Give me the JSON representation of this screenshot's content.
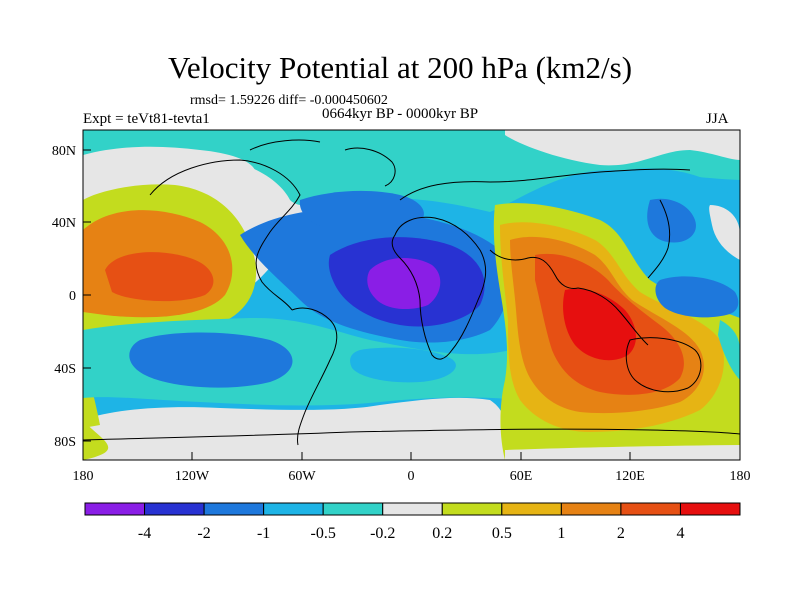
{
  "header": {
    "title": "Velocity Potential at 200 hPa (km2/s)",
    "stats": "rmsd= 1.59226 diff= -0.000450602",
    "period": "0664kyr BP - 0000kyr BP",
    "experiment": "Expt = teVt81-tevta1",
    "season": "JJA"
  },
  "map": {
    "lat_ticks": [
      "80N",
      "40N",
      "0",
      "40S",
      "80S"
    ],
    "lon_ticks": [
      "180",
      "120W",
      "60W",
      "0",
      "60E",
      "120E",
      "180"
    ]
  },
  "colorbar": {
    "levels": [
      "-4",
      "-2",
      "-1",
      "-0.5",
      "-0.2",
      "0.2",
      "0.5",
      "1",
      "2",
      "4"
    ],
    "colors": [
      "#8a1ee6",
      "#2832d2",
      "#1e78dc",
      "#1eb4e6",
      "#32d2c8",
      "#e6e6e6",
      "#c3dc1e",
      "#e6b414",
      "#e68214",
      "#e65014",
      "#e60f0f"
    ]
  }
}
